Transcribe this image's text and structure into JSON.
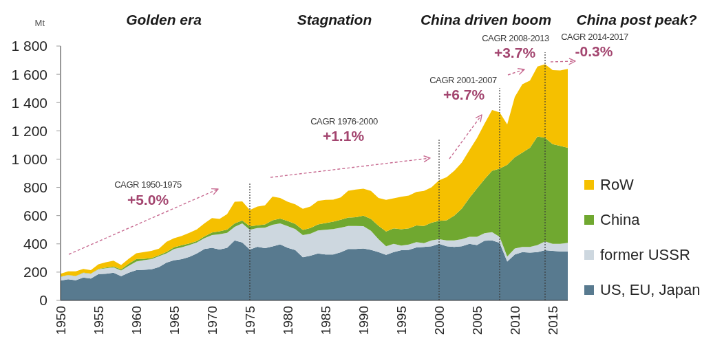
{
  "chart_data": {
    "type": "area",
    "stacked": true,
    "ylabel": "Mt",
    "x": [
      1950,
      1951,
      1952,
      1953,
      1954,
      1955,
      1956,
      1957,
      1958,
      1959,
      1960,
      1961,
      1962,
      1963,
      1964,
      1965,
      1966,
      1967,
      1968,
      1969,
      1970,
      1971,
      1972,
      1973,
      1974,
      1975,
      1976,
      1977,
      1978,
      1979,
      1980,
      1981,
      1982,
      1983,
      1984,
      1985,
      1986,
      1987,
      1988,
      1989,
      1990,
      1991,
      1992,
      1993,
      1994,
      1995,
      1996,
      1997,
      1998,
      1999,
      2000,
      2001,
      2002,
      2003,
      2004,
      2005,
      2006,
      2007,
      2008,
      2009,
      2010,
      2011,
      2012,
      2013,
      2014,
      2015,
      2016,
      2017
    ],
    "xlim": [
      1950,
      2017
    ],
    "xticks": [
      1950,
      1955,
      1960,
      1965,
      1970,
      1975,
      1980,
      1985,
      1990,
      1995,
      2000,
      2005,
      2010,
      2015
    ],
    "ylim": [
      0,
      1800
    ],
    "yticks": [
      0,
      200,
      400,
      600,
      800,
      {
        "value": 1000,
        "label": "1 000"
      },
      {
        "value": 1200,
        "label": "1 200"
      },
      {
        "value": 1400,
        "label": "1 400"
      },
      {
        "value": 1600,
        "label": "1 600"
      },
      {
        "value": 1800,
        "label": "1 800"
      }
    ],
    "series": [
      {
        "name": "US, EU, Japan",
        "color": "#587a8f",
        "values": [
          140,
          150,
          142,
          162,
          155,
          186,
          188,
          196,
          172,
          196,
          214,
          216,
          220,
          236,
          268,
          284,
          292,
          308,
          332,
          364,
          372,
          360,
          372,
          425,
          410,
          360,
          380,
          370,
          382,
          396,
          372,
          356,
          305,
          316,
          332,
          325,
          325,
          340,
          364,
          364,
          367,
          358,
          342,
          322,
          342,
          355,
          358,
          375,
          378,
          383,
          400,
          383,
          378,
          383,
          400,
          392,
          422,
          425,
          408,
          275,
          325,
          342,
          338,
          342,
          355,
          350,
          347,
          347
        ]
      },
      {
        "name": "former USSR",
        "color": "#cdd7df",
        "values": [
          27,
          29,
          30,
          33,
          33,
          34,
          40,
          38,
          40,
          49,
          61,
          69,
          72,
          76,
          65,
          80,
          84,
          84,
          78,
          76,
          90,
          108,
          106,
          95,
          135,
          140,
          132,
          144,
          153,
          149,
          153,
          149,
          157,
          156,
          163,
          175,
          180,
          175,
          163,
          163,
          158,
          134,
          91,
          61,
          58,
          33,
          37,
          37,
          27,
          42,
          33,
          42,
          47,
          50,
          50,
          58,
          53,
          58,
          42,
          35,
          42,
          36,
          40,
          50,
          62,
          50,
          53,
          61
        ]
      },
      {
        "name": "China",
        "color": "#70a830",
        "values": [
          1,
          1,
          1,
          2,
          2,
          3,
          4,
          5,
          8,
          14,
          18,
          9,
          7,
          8,
          10,
          12,
          15,
          10,
          9,
          13,
          18,
          21,
          23,
          25,
          21,
          24,
          20,
          24,
          32,
          34,
          37,
          36,
          37,
          40,
          43,
          47,
          52,
          56,
          59,
          62,
          75,
          85,
          95,
          105,
          110,
          115,
          115,
          118,
          122,
          125,
          130,
          142,
          175,
          217,
          275,
          342,
          383,
          434,
          483,
          650,
          646,
          668,
          702,
          768,
          733,
          705,
          693,
          672
        ]
      },
      {
        "name": "RoW",
        "color": "#f5c000",
        "values": [
          21,
          25,
          33,
          25,
          24,
          32,
          38,
          42,
          30,
          35,
          40,
          48,
          51,
          46,
          72,
          64,
          65,
          76,
          83,
          92,
          102,
          88,
          109,
          153,
          134,
          116,
          132,
          134,
          168,
          146,
          136,
          139,
          149,
          152,
          166,
          165,
          156,
          157,
          190,
          195,
          190,
          198,
          197,
          224,
          212,
          230,
          232,
          237,
          248,
          250,
          287,
          305,
          317,
          325,
          338,
          356,
          392,
          430,
          397,
          285,
          427,
          484,
          475,
          495,
          521,
          525,
          534,
          558
        ]
      }
    ],
    "legend": "right",
    "ref_lines": [
      {
        "axis": "x",
        "value": 1975,
        "color": "#3a3a3a",
        "line_style": "dotted"
      },
      {
        "axis": "x",
        "value": 2000,
        "color": "#3a3a3a",
        "line_style": "dotted"
      },
      {
        "axis": "x",
        "value": 2008,
        "color": "#3a3a3a",
        "line_style": "dotted"
      },
      {
        "axis": "x",
        "value": 2014,
        "color": "#3a3a3a",
        "line_style": "dotted"
      }
    ],
    "annotations": [
      "Golden era",
      "Stagnation",
      "China driven boom",
      "China post peak?",
      "CAGR 1950-1975",
      "+5.0%",
      "CAGR 1976-2000",
      "+1.1%",
      "CAGR 2001-2007",
      "+6.7%",
      "CAGR 2008-2013",
      "+3.7%",
      "CAGR 2014-2017",
      "-0.3%"
    ]
  }
}
